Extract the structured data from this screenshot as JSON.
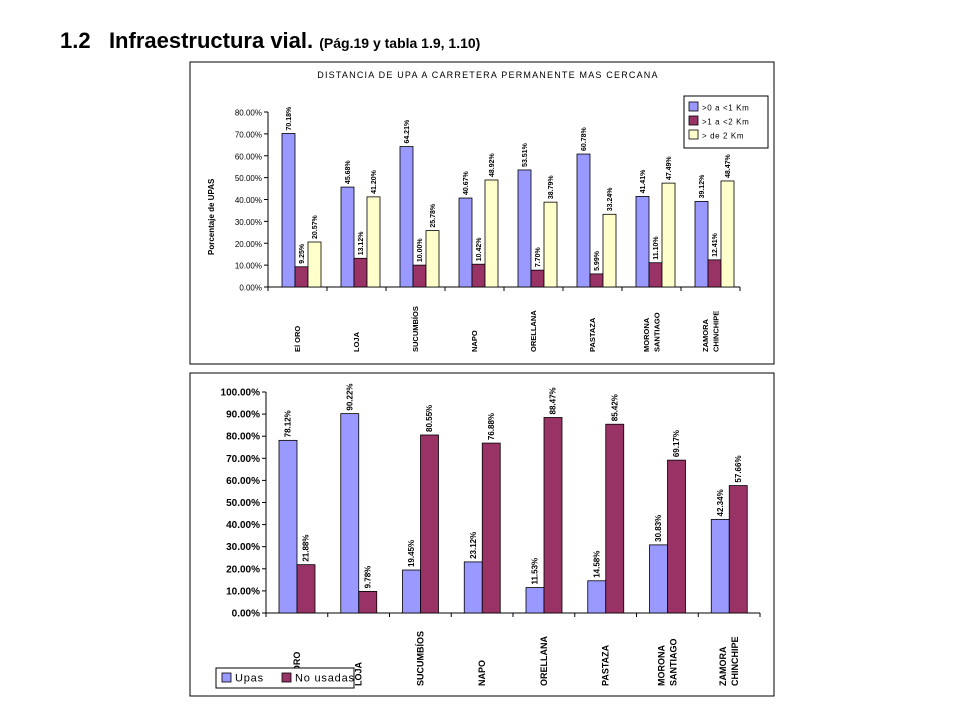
{
  "page": {
    "number": "1.2",
    "title": "Infraestructura vial.",
    "subtitle": "(Pág.19 y tabla 1.9, 1.10)"
  },
  "chart_data": [
    {
      "type": "bar",
      "title": "DISTANCIA DE UPA A CARRETERA PERMANENTE MAS CERCANA",
      "xlabel": "",
      "ylabel": "Porcentaje de UPAS",
      "ylim": [
        0,
        80
      ],
      "yticks": [
        "0.00%",
        "10.00%",
        "20.00%",
        "30.00%",
        "40.00%",
        "50.00%",
        "60.00%",
        "70.00%",
        "80.00%"
      ],
      "categories": [
        [
          "El ORO"
        ],
        [
          "LOJA"
        ],
        [
          "SUCUMBÍOS"
        ],
        [
          "NAPO"
        ],
        [
          "ORELLANA"
        ],
        [
          "PASTAZA"
        ],
        [
          "MORONA",
          "SANTIAGO"
        ],
        [
          "ZAMORA",
          "CHINCHIPE"
        ]
      ],
      "series": [
        {
          "name": ">0 a <1 Km",
          "color": "#9999ff",
          "values": [
            70.18,
            45.68,
            64.21,
            40.67,
            53.51,
            60.78,
            41.41,
            39.12
          ],
          "labels": [
            "70.18%",
            "45.68%",
            "64.21%",
            "40.67%",
            "53.51%",
            "60.78%",
            "41.41%",
            "39.12%"
          ]
        },
        {
          "name": ">1 a <2 Km",
          "color": "#993366",
          "values": [
            9.25,
            13.12,
            10.0,
            10.42,
            7.7,
            5.99,
            11.1,
            12.41
          ],
          "labels": [
            "9.25%",
            "13.12%",
            "10.00%",
            "10.42%",
            "7.70%",
            "5.99%",
            "11.10%",
            "12.41%"
          ]
        },
        {
          "name": "> de 2 Km",
          "color": "#ffffcc",
          "values": [
            20.57,
            41.2,
            25.78,
            48.92,
            38.79,
            33.24,
            47.49,
            48.47
          ],
          "labels": [
            "20.57%",
            "41.20%",
            "25.78%",
            "48.92%",
            "38.79%",
            "33.24%",
            "47.49%",
            "48.47%"
          ]
        }
      ],
      "grid": false,
      "legend": "top-right"
    },
    {
      "type": "bar",
      "title": "",
      "xlabel": "",
      "ylabel": "",
      "ylim": [
        0,
        100
      ],
      "yticks": [
        "0.00%",
        "10.00%",
        "20.00%",
        "30.00%",
        "40.00%",
        "50.00%",
        "60.00%",
        "70.00%",
        "80.00%",
        "90.00%",
        "100.00%"
      ],
      "categories": [
        [
          "EL ORO"
        ],
        [
          "LOJA"
        ],
        [
          "SUCUMBÍOS"
        ],
        [
          "NAPO"
        ],
        [
          "ORELLANA"
        ],
        [
          "PASTAZA"
        ],
        [
          "MORONA",
          "SANTIAGO"
        ],
        [
          "ZAMORA",
          "CHINCHIPE"
        ]
      ],
      "series": [
        {
          "name": "Upas",
          "color": "#9999ff",
          "values": [
            78.12,
            90.22,
            19.45,
            23.12,
            11.53,
            14.58,
            30.83,
            42.34
          ],
          "labels": [
            "78.12%",
            "90.22%",
            "19.45%",
            "23.12%",
            "11.53%",
            "14.58%",
            "30.83%",
            "42.34%"
          ]
        },
        {
          "name": "No usadas",
          "color": "#993366",
          "values": [
            21.88,
            9.78,
            80.55,
            76.88,
            88.47,
            85.42,
            69.17,
            57.66
          ],
          "labels": [
            "21.88%",
            "9.78%",
            "80.55%",
            "76.88%",
            "88.47%",
            "85.42%",
            "69.17%",
            "57.66%"
          ]
        }
      ],
      "grid": false,
      "legend": "bottom-left"
    }
  ]
}
